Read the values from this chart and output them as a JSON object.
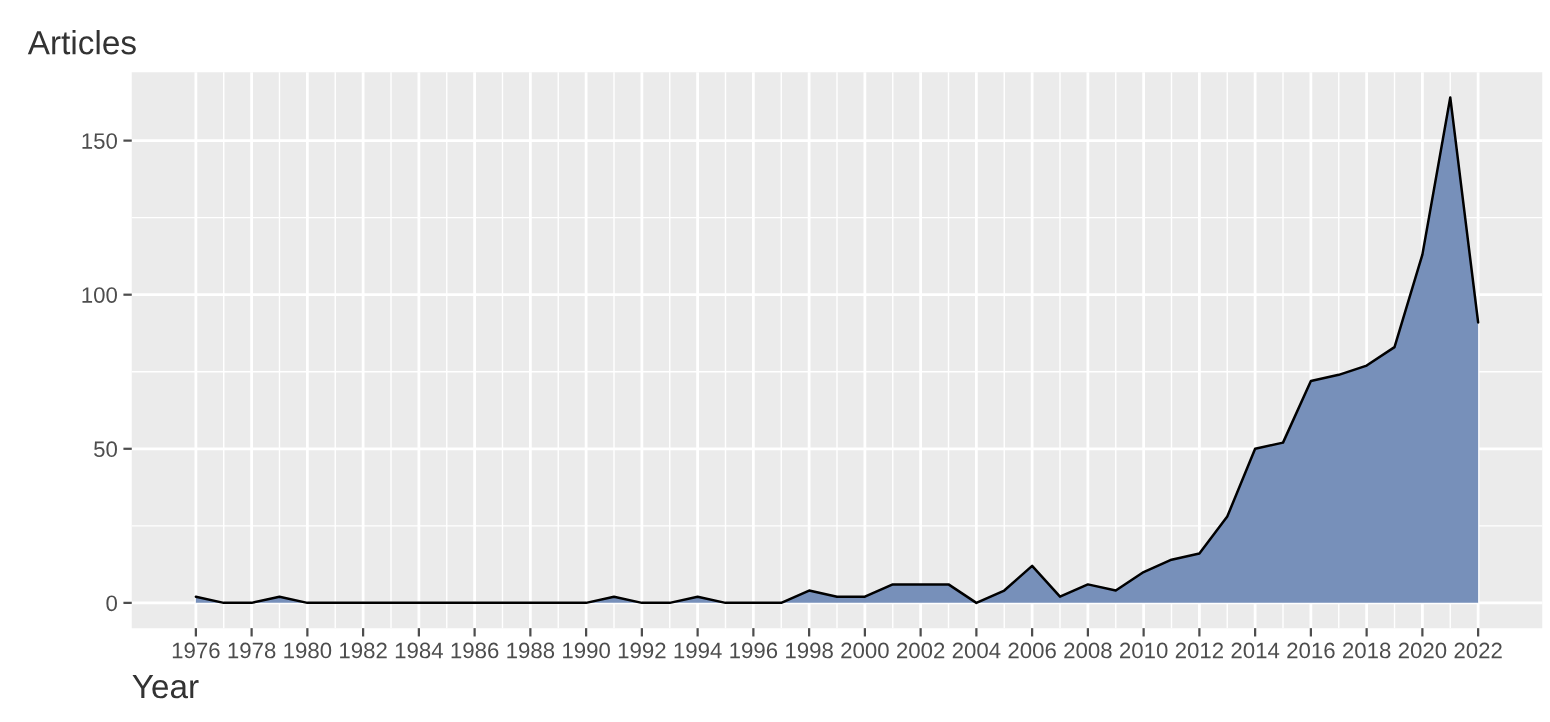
{
  "chart_data": {
    "type": "area",
    "xlabel": "Year",
    "ylabel": "Articles",
    "x": [
      1976,
      1977,
      1978,
      1979,
      1980,
      1981,
      1982,
      1983,
      1984,
      1985,
      1986,
      1987,
      1988,
      1989,
      1990,
      1991,
      1992,
      1993,
      1994,
      1995,
      1996,
      1997,
      1998,
      1999,
      2000,
      2001,
      2002,
      2003,
      2004,
      2005,
      2006,
      2007,
      2008,
      2009,
      2010,
      2011,
      2012,
      2013,
      2014,
      2015,
      2016,
      2017,
      2018,
      2019,
      2020,
      2021,
      2022
    ],
    "series": [
      {
        "color": "#7790ba",
        "values": [
          2,
          0,
          0,
          2,
          0,
          0,
          0,
          0,
          0,
          0,
          0,
          0,
          0,
          0,
          0,
          2,
          0,
          0,
          2,
          0,
          0,
          0,
          4,
          2,
          2,
          6,
          6,
          6,
          0,
          4,
          12,
          2,
          6,
          4,
          10,
          14,
          16,
          28,
          50,
          52,
          72,
          74,
          77,
          83,
          113,
          164,
          91
        ]
      }
    ],
    "xlim": [
      1973.7,
      2024.3
    ],
    "ylim": [
      -8.2,
      172.2
    ],
    "xticks": [
      1976,
      1978,
      1980,
      1982,
      1984,
      1986,
      1988,
      1990,
      1992,
      1994,
      1996,
      1998,
      2000,
      2002,
      2004,
      2006,
      2008,
      2010,
      2012,
      2014,
      2016,
      2018,
      2020,
      2022
    ],
    "yticks": [
      0,
      50,
      100,
      150
    ],
    "grid": true,
    "legend": false
  }
}
